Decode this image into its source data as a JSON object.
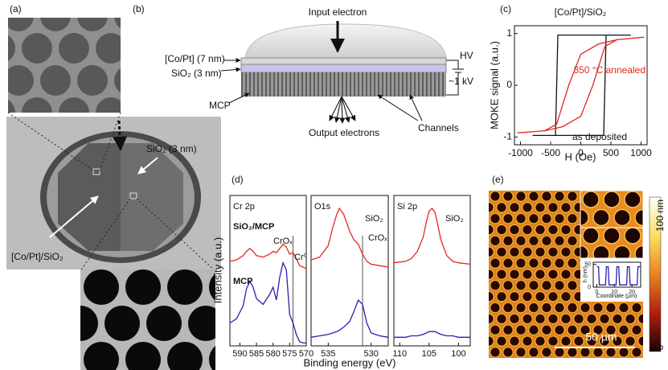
{
  "panels": {
    "a": {
      "label": "(a)",
      "annotations": [
        "SiO₂ (3 nm)",
        "[Co/Pt]/SiO₂"
      ]
    },
    "b": {
      "label": "(b)",
      "annotations": [
        "Input electron",
        "[Co/Pt] (7 nm)",
        "SiO₂ (3 nm)",
        "HV",
        "~1 kV",
        "MCP",
        "Output electrons",
        "Channels"
      ]
    },
    "c": {
      "label": "(c)"
    },
    "d": {
      "label": "(d)"
    },
    "e": {
      "label": "(e)",
      "colorbar_labels": [
        "100 nm",
        "0"
      ],
      "scale_bar": "50 µm"
    }
  },
  "chart_data": [
    {
      "type": "line",
      "title": "[Co/Pt]/SiO₂",
      "xlabel": "H (Oe)",
      "ylabel": "MOKE signal (a.u.)",
      "xlim": [
        -1100,
        1100
      ],
      "xticks": [
        -1000,
        -500,
        0,
        500,
        1000
      ],
      "ylim": [
        -1.15,
        1.15
      ],
      "yticks": [
        -1,
        0,
        1
      ],
      "series": [
        {
          "name": "as deposited",
          "color": "#111111",
          "x": [
            -800,
            380,
            400,
            420,
            830,
            -380,
            -400,
            -420,
            -800
          ],
          "values": [
            -0.97,
            -0.97,
            0,
            0.97,
            0.97,
            0.97,
            0,
            -0.97,
            -0.97
          ]
        },
        {
          "name": "350 °C annealed",
          "color": "#e0281e",
          "x": [
            -1050,
            -600,
            -300,
            0,
            200,
            400,
            600,
            1050,
            600,
            300,
            0,
            -200,
            -400,
            -600,
            -1050
          ],
          "values": [
            -0.92,
            -0.88,
            -0.8,
            -0.6,
            0,
            0.75,
            0.88,
            0.93,
            0.88,
            0.8,
            0.6,
            0,
            -0.75,
            -0.88,
            -0.92
          ]
        }
      ]
    },
    {
      "type": "line",
      "title": "Cr 2p",
      "xlabel": "Binding energy (eV)",
      "ylabel": "Intensity (a.u.)",
      "xlim": [
        593,
        570
      ],
      "xticks": [
        590,
        585,
        580,
        575,
        570
      ],
      "ylim": [
        0,
        10.5
      ],
      "vlines": [
        574
      ],
      "annotations": [
        "CrOₓ",
        "Cr⁰"
      ],
      "series": [
        {
          "name": "SiO₂/MCP",
          "color": "#e0281e",
          "x": [
            593,
            591,
            589,
            588,
            587,
            586,
            585,
            583,
            581,
            580,
            579,
            578,
            577,
            576,
            575,
            574,
            573,
            572,
            571,
            570
          ],
          "values": [
            5.9,
            6.0,
            6.3,
            6.6,
            6.8,
            6.6,
            6.3,
            6.2,
            6.4,
            6.6,
            6.5,
            6.8,
            7.1,
            6.9,
            6.4,
            6.5,
            6.1,
            5.6,
            5.5,
            5.4
          ]
        },
        {
          "name": "MCP",
          "color": "#2a1fb0",
          "x": [
            593,
            591,
            589,
            588,
            587,
            586,
            585,
            583,
            581,
            580,
            579,
            578,
            577,
            576,
            575,
            574,
            573,
            572,
            571,
            570
          ],
          "values": [
            1.6,
            1.9,
            2.8,
            4.0,
            4.5,
            4.1,
            3.3,
            2.9,
            3.6,
            4.1,
            3.2,
            4.8,
            5.8,
            5.3,
            2.2,
            1.6,
            0.8,
            0.3,
            0.2,
            0.2
          ]
        }
      ]
    },
    {
      "type": "line",
      "title": "O1s",
      "xlim": [
        537,
        528
      ],
      "xticks": [
        535,
        530
      ],
      "ylim": [
        0,
        10.5
      ],
      "vlines": [
        531
      ],
      "annotations": [
        "SiO₂",
        "CrOₓ"
      ],
      "series": [
        {
          "color": "#e0281e",
          "x": [
            537,
            536,
            535,
            534.5,
            534,
            533.7,
            533.2,
            532.5,
            532,
            531.5,
            531,
            530.5,
            530,
            529,
            528
          ],
          "values": [
            6.0,
            6.2,
            7.0,
            8.2,
            9.2,
            9.6,
            9.2,
            8.0,
            7.4,
            7.1,
            6.4,
            5.9,
            5.7,
            5.6,
            5.5
          ]
        },
        {
          "color": "#2a1fb0",
          "x": [
            537,
            536,
            535,
            534.5,
            534,
            533.7,
            533.2,
            532.5,
            532,
            531.5,
            531,
            530.5,
            530,
            529,
            528
          ],
          "values": [
            0.6,
            0.7,
            0.8,
            0.9,
            1.0,
            1.1,
            1.3,
            1.7,
            2.4,
            3.2,
            2.9,
            1.6,
            0.9,
            0.7,
            0.6
          ]
        }
      ]
    },
    {
      "type": "line",
      "title": "Si 2p",
      "xlim": [
        111,
        98
      ],
      "xticks": [
        110,
        105,
        100
      ],
      "ylim": [
        0,
        10.5
      ],
      "annotations": [
        "SiO₂"
      ],
      "series": [
        {
          "color": "#e0281e",
          "x": [
            111,
            109,
            108,
            107,
            106,
            105.5,
            105,
            104.5,
            104,
            103.5,
            103,
            102,
            101,
            100,
            98
          ],
          "values": [
            5.8,
            5.9,
            6.1,
            6.6,
            7.6,
            8.6,
            9.4,
            9.6,
            9.3,
            8.4,
            7.4,
            6.3,
            5.9,
            5.8,
            5.7
          ]
        },
        {
          "color": "#2a1fb0",
          "x": [
            111,
            109,
            108,
            107,
            106,
            105.5,
            105,
            104.5,
            104,
            103.5,
            103,
            102,
            101,
            100,
            98
          ],
          "values": [
            0.6,
            0.6,
            0.7,
            0.7,
            0.8,
            0.9,
            1.0,
            1.0,
            1.0,
            0.9,
            0.8,
            0.7,
            0.7,
            0.6,
            0.6
          ]
        }
      ]
    },
    {
      "type": "line",
      "xlabel": "Coordinate (µm)",
      "ylabel": "h (nm)",
      "xlim": [
        -2,
        25
      ],
      "xticks": [
        0,
        10,
        20
      ],
      "ylim": [
        0,
        55
      ],
      "yticks": [
        0,
        50
      ],
      "series": [
        {
          "color": "#2a1fb0",
          "x": [
            0,
            1,
            1.5,
            5,
            5.5,
            6.5,
            7,
            11,
            11.5,
            12.5,
            13,
            17,
            17.5,
            18.5,
            19,
            23,
            23.5,
            25
          ],
          "values": [
            45,
            45,
            5,
            5,
            45,
            45,
            5,
            5,
            45,
            45,
            5,
            5,
            45,
            45,
            5,
            5,
            45,
            45
          ]
        }
      ]
    }
  ]
}
